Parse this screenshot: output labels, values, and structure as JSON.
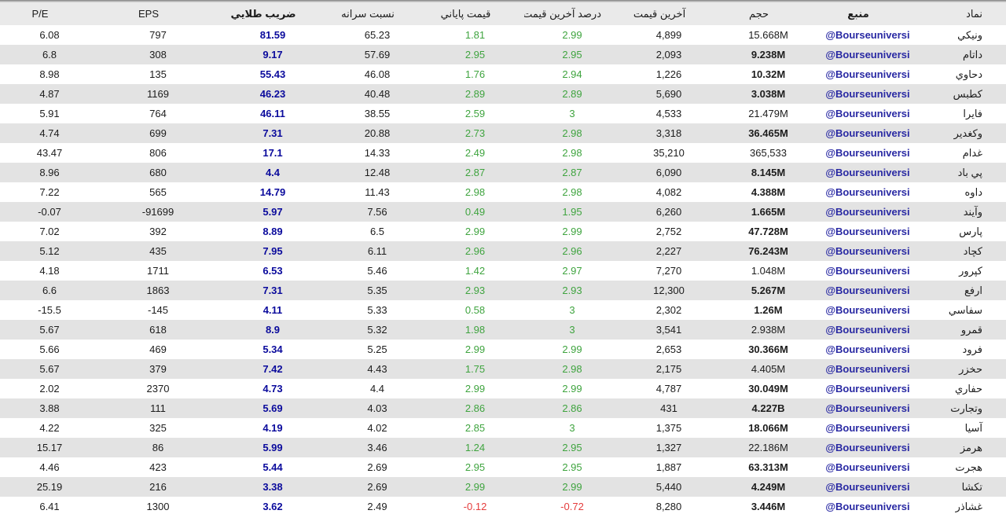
{
  "table": {
    "columns": [
      {
        "key": "symbol",
        "label": "نماد",
        "bold": false
      },
      {
        "key": "source",
        "label": "منبع",
        "bold": true
      },
      {
        "key": "volume",
        "label": "حجم",
        "bold": false
      },
      {
        "key": "last_price",
        "label": "آخرين قيمت",
        "bold": false
      },
      {
        "key": "last_pct",
        "label": "درصد آخرين قيمت",
        "bold": false
      },
      {
        "key": "close_pct",
        "label": "قيمت پاياني",
        "bold": false
      },
      {
        "key": "per_capita",
        "label": "نسبت سرانه",
        "bold": false
      },
      {
        "key": "golden",
        "label": "ضريب طلايي",
        "bold": true
      },
      {
        "key": "eps",
        "label": "EPS",
        "bold": false
      },
      {
        "key": "pe",
        "label": "P/E",
        "bold": false
      }
    ],
    "rows": [
      {
        "symbol": "ونيكي",
        "source": "@Bourseuniversi",
        "volume": "15.668M",
        "volume_bold": false,
        "last_price": "4,899",
        "last_pct": "2.99",
        "close_pct": "1.81",
        "per_capita": "65.23",
        "golden": "81.59",
        "eps": "797",
        "pe": "6.08"
      },
      {
        "symbol": "داتام",
        "source": "@Bourseuniversi",
        "volume": "9.238M",
        "volume_bold": true,
        "last_price": "2,093",
        "last_pct": "2.95",
        "close_pct": "2.95",
        "per_capita": "57.69",
        "golden": "9.17",
        "eps": "308",
        "pe": "6.8"
      },
      {
        "symbol": "دحاوي",
        "source": "@Bourseuniversi",
        "volume": "10.32M",
        "volume_bold": true,
        "last_price": "1,226",
        "last_pct": "2.94",
        "close_pct": "1.76",
        "per_capita": "46.08",
        "golden": "55.43",
        "eps": "135",
        "pe": "8.98"
      },
      {
        "symbol": "كطبس",
        "source": "@Bourseuniversi",
        "volume": "3.038M",
        "volume_bold": true,
        "last_price": "5,690",
        "last_pct": "2.89",
        "close_pct": "2.89",
        "per_capita": "40.48",
        "golden": "46.23",
        "eps": "1169",
        "pe": "4.87"
      },
      {
        "symbol": "فايرا",
        "source": "@Bourseuniversi",
        "volume": "21.479M",
        "volume_bold": false,
        "last_price": "4,533",
        "last_pct": "3",
        "close_pct": "2.59",
        "per_capita": "38.55",
        "golden": "46.11",
        "eps": "764",
        "pe": "5.91"
      },
      {
        "symbol": "وكغدير",
        "source": "@Bourseuniversi",
        "volume": "36.465M",
        "volume_bold": true,
        "last_price": "3,318",
        "last_pct": "2.98",
        "close_pct": "2.73",
        "per_capita": "20.88",
        "golden": "7.31",
        "eps": "699",
        "pe": "4.74"
      },
      {
        "symbol": "غدام",
        "source": "@Bourseuniversi",
        "volume": "365,533",
        "volume_bold": false,
        "last_price": "35,210",
        "last_pct": "2.98",
        "close_pct": "2.49",
        "per_capita": "14.33",
        "golden": "17.1",
        "eps": "806",
        "pe": "43.47"
      },
      {
        "symbol": "پي باد",
        "source": "@Bourseuniversi",
        "volume": "8.145M",
        "volume_bold": true,
        "last_price": "6,090",
        "last_pct": "2.87",
        "close_pct": "2.87",
        "per_capita": "12.48",
        "golden": "4.4",
        "eps": "680",
        "pe": "8.96"
      },
      {
        "symbol": "داوه",
        "source": "@Bourseuniversi",
        "volume": "4.388M",
        "volume_bold": true,
        "last_price": "4,082",
        "last_pct": "2.98",
        "close_pct": "2.98",
        "per_capita": "11.43",
        "golden": "14.79",
        "eps": "565",
        "pe": "7.22"
      },
      {
        "symbol": "وآيند",
        "source": "@Bourseuniversi",
        "volume": "1.665M",
        "volume_bold": true,
        "last_price": "6,260",
        "last_pct": "1.95",
        "close_pct": "0.49",
        "per_capita": "7.56",
        "golden": "5.97",
        "eps": "-91699",
        "pe": "-0.07"
      },
      {
        "symbol": "پارس",
        "source": "@Bourseuniversi",
        "volume": "47.728M",
        "volume_bold": true,
        "last_price": "2,752",
        "last_pct": "2.99",
        "close_pct": "2.99",
        "per_capita": "6.5",
        "golden": "8.89",
        "eps": "392",
        "pe": "7.02"
      },
      {
        "symbol": "كچاد",
        "source": "@Bourseuniversi",
        "volume": "76.243M",
        "volume_bold": true,
        "last_price": "2,227",
        "last_pct": "2.96",
        "close_pct": "2.96",
        "per_capita": "6.11",
        "golden": "7.95",
        "eps": "435",
        "pe": "5.12"
      },
      {
        "symbol": "كپرور",
        "source": "@Bourseuniversi",
        "volume": "1.048M",
        "volume_bold": false,
        "last_price": "7,270",
        "last_pct": "2.97",
        "close_pct": "1.42",
        "per_capita": "5.46",
        "golden": "6.53",
        "eps": "1711",
        "pe": "4.18"
      },
      {
        "symbol": "ارفع",
        "source": "@Bourseuniversi",
        "volume": "5.267M",
        "volume_bold": true,
        "last_price": "12,300",
        "last_pct": "2.93",
        "close_pct": "2.93",
        "per_capita": "5.35",
        "golden": "7.31",
        "eps": "1863",
        "pe": "6.6"
      },
      {
        "symbol": "سفاسي",
        "source": "@Bourseuniversi",
        "volume": "1.26M",
        "volume_bold": true,
        "last_price": "2,302",
        "last_pct": "3",
        "close_pct": "0.58",
        "per_capita": "5.33",
        "golden": "4.11",
        "eps": "-145",
        "pe": "-15.5"
      },
      {
        "symbol": "قمرو",
        "source": "@Bourseuniversi",
        "volume": "2.938M",
        "volume_bold": false,
        "last_price": "3,541",
        "last_pct": "3",
        "close_pct": "1.98",
        "per_capita": "5.32",
        "golden": "8.9",
        "eps": "618",
        "pe": "5.67"
      },
      {
        "symbol": "فرود",
        "source": "@Bourseuniversi",
        "volume": "30.366M",
        "volume_bold": true,
        "last_price": "2,653",
        "last_pct": "2.99",
        "close_pct": "2.99",
        "per_capita": "5.25",
        "golden": "5.34",
        "eps": "469",
        "pe": "5.66"
      },
      {
        "symbol": "حخزر",
        "source": "@Bourseuniversi",
        "volume": "4.405M",
        "volume_bold": false,
        "last_price": "2,175",
        "last_pct": "2.98",
        "close_pct": "1.75",
        "per_capita": "4.43",
        "golden": "7.42",
        "eps": "379",
        "pe": "5.67"
      },
      {
        "symbol": "حفاري",
        "source": "@Bourseuniversi",
        "volume": "30.049M",
        "volume_bold": true,
        "last_price": "4,787",
        "last_pct": "2.99",
        "close_pct": "2.99",
        "per_capita": "4.4",
        "golden": "4.73",
        "eps": "2370",
        "pe": "2.02"
      },
      {
        "symbol": "وتجارت",
        "source": "@Bourseuniversi",
        "volume": "4.227B",
        "volume_bold": true,
        "last_price": "431",
        "last_pct": "2.86",
        "close_pct": "2.86",
        "per_capita": "4.03",
        "golden": "5.69",
        "eps": "111",
        "pe": "3.88"
      },
      {
        "symbol": "آسيا",
        "source": "@Bourseuniversi",
        "volume": "18.066M",
        "volume_bold": true,
        "last_price": "1,375",
        "last_pct": "3",
        "close_pct": "2.85",
        "per_capita": "4.02",
        "golden": "4.19",
        "eps": "325",
        "pe": "4.22"
      },
      {
        "symbol": "هرمز",
        "source": "@Bourseuniversi",
        "volume": "22.186M",
        "volume_bold": false,
        "last_price": "1,327",
        "last_pct": "2.95",
        "close_pct": "1.24",
        "per_capita": "3.46",
        "golden": "5.99",
        "eps": "86",
        "pe": "15.17"
      },
      {
        "symbol": "هجرت",
        "source": "@Bourseuniversi",
        "volume": "63.313M",
        "volume_bold": true,
        "last_price": "1,887",
        "last_pct": "2.95",
        "close_pct": "2.95",
        "per_capita": "2.69",
        "golden": "5.44",
        "eps": "423",
        "pe": "4.46"
      },
      {
        "symbol": "تكشا",
        "source": "@Bourseuniversi",
        "volume": "4.249M",
        "volume_bold": true,
        "last_price": "5,440",
        "last_pct": "2.99",
        "close_pct": "2.99",
        "per_capita": "2.69",
        "golden": "3.38",
        "eps": "216",
        "pe": "25.19"
      },
      {
        "symbol": "غشاذر",
        "source": "@Bourseuniversi",
        "volume": "3.446M",
        "volume_bold": true,
        "last_price": "8,280",
        "last_pct": "-0.72",
        "close_pct": "-0.12",
        "per_capita": "2.49",
        "golden": "3.62",
        "eps": "1300",
        "pe": "6.41"
      }
    ]
  },
  "colors": {
    "positive": "#3fa43f",
    "negative": "#e53c3c",
    "golden_accent": "#0a0a9c",
    "source_link": "#2929a3",
    "row_alt": "#e3e3e3",
    "header_bg": "#eaeaea"
  }
}
